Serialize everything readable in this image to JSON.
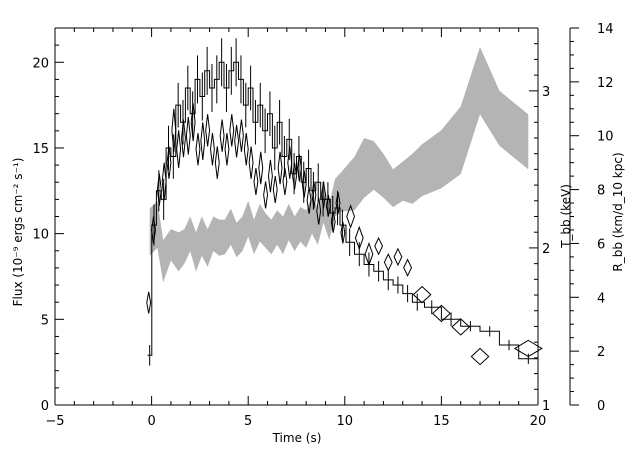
{
  "chart_data": {
    "type": "line",
    "xlabel": "Time (s)",
    "ylabel_left": "Flux (10⁻⁹ ergs cm⁻² s⁻¹)",
    "ylabel_right_inner": "T_bb (keV)",
    "ylabel_right_outer": "R_bb (km/d_10 kpc)",
    "xlim": [
      -5,
      20
    ],
    "ylim_left": [
      0,
      22
    ],
    "ylim_right_outer": [
      0,
      14
    ],
    "ylim_right_inner": [
      1,
      3.4
    ],
    "x_ticks": [
      -5,
      0,
      5,
      10,
      15,
      20
    ],
    "y_left_ticks": [
      0,
      5,
      10,
      15,
      20
    ],
    "y_right_outer_ticks": [
      0,
      2,
      4,
      6,
      8,
      10,
      12,
      14
    ],
    "y_right_inner_ticks": [
      1,
      2,
      3
    ],
    "y_right_inner_tick_labels": [
      "1",
      "2",
      "3"
    ],
    "series": [
      {
        "style": "histogram-step",
        "color": "#000000",
        "x": [
          -0.1,
          0.125,
          0.375,
          0.625,
          0.875,
          1.125,
          1.375,
          1.625,
          1.875,
          2.125,
          2.375,
          2.625,
          2.875,
          3.125,
          3.375,
          3.625,
          3.875,
          4.125,
          4.375,
          4.625,
          4.875,
          5.125,
          5.375,
          5.625,
          5.875,
          6.125,
          6.375,
          6.625,
          6.875,
          7.125,
          7.375,
          7.625,
          7.875,
          8.125,
          8.375,
          8.625,
          8.875,
          9.125,
          9.375,
          9.625,
          9.875,
          10.25,
          10.75,
          11.25,
          11.75,
          12.25,
          12.75,
          13.25,
          13.75,
          14.5,
          15.5,
          16.5,
          17.5,
          18.5,
          19.5
        ],
        "y": [
          2.9,
          10.5,
          12.5,
          12.0,
          15.0,
          14.5,
          17.5,
          16.5,
          18.5,
          17.0,
          19.0,
          18.0,
          19.5,
          18.5,
          19.0,
          20.0,
          18.5,
          19.5,
          20.0,
          19.0,
          17.5,
          18.5,
          16.5,
          17.5,
          16.0,
          17.0,
          15.0,
          16.5,
          14.5,
          15.5,
          13.5,
          14.5,
          13.0,
          13.8,
          12.5,
          13.0,
          12.0,
          12.0,
          11.2,
          11.5,
          10.5,
          9.5,
          8.8,
          8.2,
          7.8,
          7.3,
          7.0,
          6.5,
          6.0,
          5.7,
          5.0,
          4.6,
          4.3,
          3.5,
          2.7
        ],
        "yerr": [
          0.6,
          1.2,
          1.2,
          1.2,
          1.3,
          1.3,
          1.3,
          1.3,
          1.3,
          1.3,
          1.4,
          1.4,
          1.4,
          1.4,
          1.4,
          1.4,
          1.4,
          1.4,
          1.4,
          1.4,
          1.3,
          1.3,
          1.3,
          1.3,
          1.3,
          1.3,
          1.3,
          1.3,
          1.2,
          1.2,
          1.2,
          1.2,
          1.2,
          1.1,
          1.1,
          1.1,
          1.0,
          1.0,
          1.0,
          1.0,
          0.9,
          0.8,
          0.7,
          0.7,
          0.6,
          0.6,
          0.5,
          0.5,
          0.5,
          0.4,
          0.4,
          0.3,
          0.3,
          0.3,
          0.3
        ]
      },
      {
        "style": "diamond-errorbars",
        "axis": "right_outer",
        "color": "#000000",
        "x": [
          -0.15,
          0.1,
          0.4,
          0.65,
          0.9,
          1.15,
          1.4,
          1.65,
          1.9,
          2.15,
          2.4,
          2.65,
          2.9,
          3.15,
          3.4,
          3.65,
          3.9,
          4.15,
          4.4,
          4.65,
          4.9,
          5.15,
          5.4,
          5.65,
          5.9,
          6.15,
          6.4,
          6.65,
          6.9,
          7.15,
          7.4,
          7.65,
          7.9,
          8.15,
          8.4,
          8.65,
          8.9,
          9.15,
          9.4,
          9.65,
          9.9,
          10.3,
          10.75,
          11.25,
          11.75,
          12.25,
          12.75,
          13.25,
          14.0,
          15.0,
          16.0,
          17.0,
          19.5
        ],
        "y": [
          3.8,
          6.5,
          8.0,
          8.3,
          9.0,
          10.2,
          9.5,
          9.9,
          10.0,
          10.5,
          9.5,
          9.8,
          10.2,
          9.5,
          9.0,
          10.0,
          9.5,
          10.2,
          9.8,
          10.0,
          9.5,
          9.0,
          8.3,
          8.8,
          7.8,
          8.5,
          8.0,
          8.8,
          8.3,
          9.0,
          8.5,
          8.8,
          8.2,
          7.6,
          7.8,
          7.2,
          7.8,
          7.4,
          6.8,
          7.5,
          6.4,
          7.0,
          6.2,
          5.6,
          5.9,
          5.3,
          5.5,
          5.1,
          4.1,
          3.4,
          2.9,
          1.8,
          2.1
        ],
        "yerr": [
          0.4,
          0.5,
          0.6,
          0.7,
          0.6,
          0.8,
          0.7,
          0.7,
          0.7,
          0.7,
          0.6,
          0.7,
          0.6,
          0.6,
          0.6,
          0.6,
          0.6,
          0.6,
          0.6,
          0.6,
          0.6,
          0.6,
          0.5,
          0.6,
          0.5,
          0.6,
          0.5,
          0.6,
          0.5,
          0.6,
          0.5,
          0.5,
          0.5,
          0.5,
          0.5,
          0.5,
          0.5,
          0.4,
          0.4,
          0.4,
          0.4,
          0.4,
          0.4,
          0.4,
          0.3,
          0.3,
          0.3,
          0.3,
          0.3,
          0.3,
          0.3,
          0.3,
          0.3
        ],
        "xhalfwidth": [
          0.1,
          0.1,
          0.1,
          0.1,
          0.1,
          0.1,
          0.1,
          0.1,
          0.1,
          0.1,
          0.1,
          0.1,
          0.1,
          0.1,
          0.1,
          0.1,
          0.1,
          0.1,
          0.1,
          0.1,
          0.1,
          0.1,
          0.1,
          0.1,
          0.1,
          0.1,
          0.1,
          0.1,
          0.1,
          0.1,
          0.1,
          0.1,
          0.1,
          0.1,
          0.1,
          0.1,
          0.1,
          0.1,
          0.1,
          0.1,
          0.1,
          0.2,
          0.2,
          0.2,
          0.2,
          0.2,
          0.2,
          0.2,
          0.45,
          0.45,
          0.45,
          0.45,
          0.7
        ]
      },
      {
        "style": "shaded-band",
        "axis": "right_inner",
        "color": "#b4b4b4",
        "x": [
          -0.1,
          0.3,
          0.6,
          1.0,
          1.4,
          1.7,
          2.0,
          2.3,
          2.6,
          2.9,
          3.2,
          3.5,
          3.8,
          4.1,
          4.4,
          4.7,
          5.0,
          5.3,
          5.6,
          5.9,
          6.2,
          6.5,
          6.8,
          7.1,
          7.4,
          7.7,
          8.0,
          8.3,
          8.6,
          8.9,
          9.2,
          9.5,
          9.8,
          10.5,
          11.0,
          11.5,
          12.0,
          12.5,
          13.0,
          13.5,
          14.0,
          15.0,
          16.0,
          17.0,
          18.0,
          19.5
        ],
        "y_low": [
          1.95,
          2.0,
          1.78,
          1.92,
          1.85,
          1.9,
          1.98,
          1.85,
          1.95,
          1.88,
          1.98,
          1.95,
          1.96,
          2.02,
          1.94,
          1.98,
          2.07,
          1.96,
          2.04,
          2.0,
          1.96,
          2.02,
          1.96,
          2.05,
          1.98,
          2.04,
          2.0,
          2.09,
          2.02,
          2.16,
          2.05,
          2.2,
          2.23,
          2.24,
          2.32,
          2.37,
          2.32,
          2.26,
          2.3,
          2.28,
          2.33,
          2.38,
          2.47,
          2.85,
          2.65,
          2.5
        ],
        "y_high": [
          2.25,
          2.3,
          2.05,
          2.12,
          2.1,
          2.12,
          2.2,
          2.1,
          2.2,
          2.12,
          2.2,
          2.18,
          2.18,
          2.25,
          2.16,
          2.2,
          2.3,
          2.18,
          2.28,
          2.22,
          2.18,
          2.24,
          2.2,
          2.28,
          2.2,
          2.26,
          2.24,
          2.33,
          2.25,
          2.4,
          2.28,
          2.44,
          2.48,
          2.58,
          2.7,
          2.68,
          2.6,
          2.5,
          2.55,
          2.6,
          2.66,
          2.75,
          2.9,
          3.28,
          3.0,
          2.85
        ]
      }
    ]
  }
}
